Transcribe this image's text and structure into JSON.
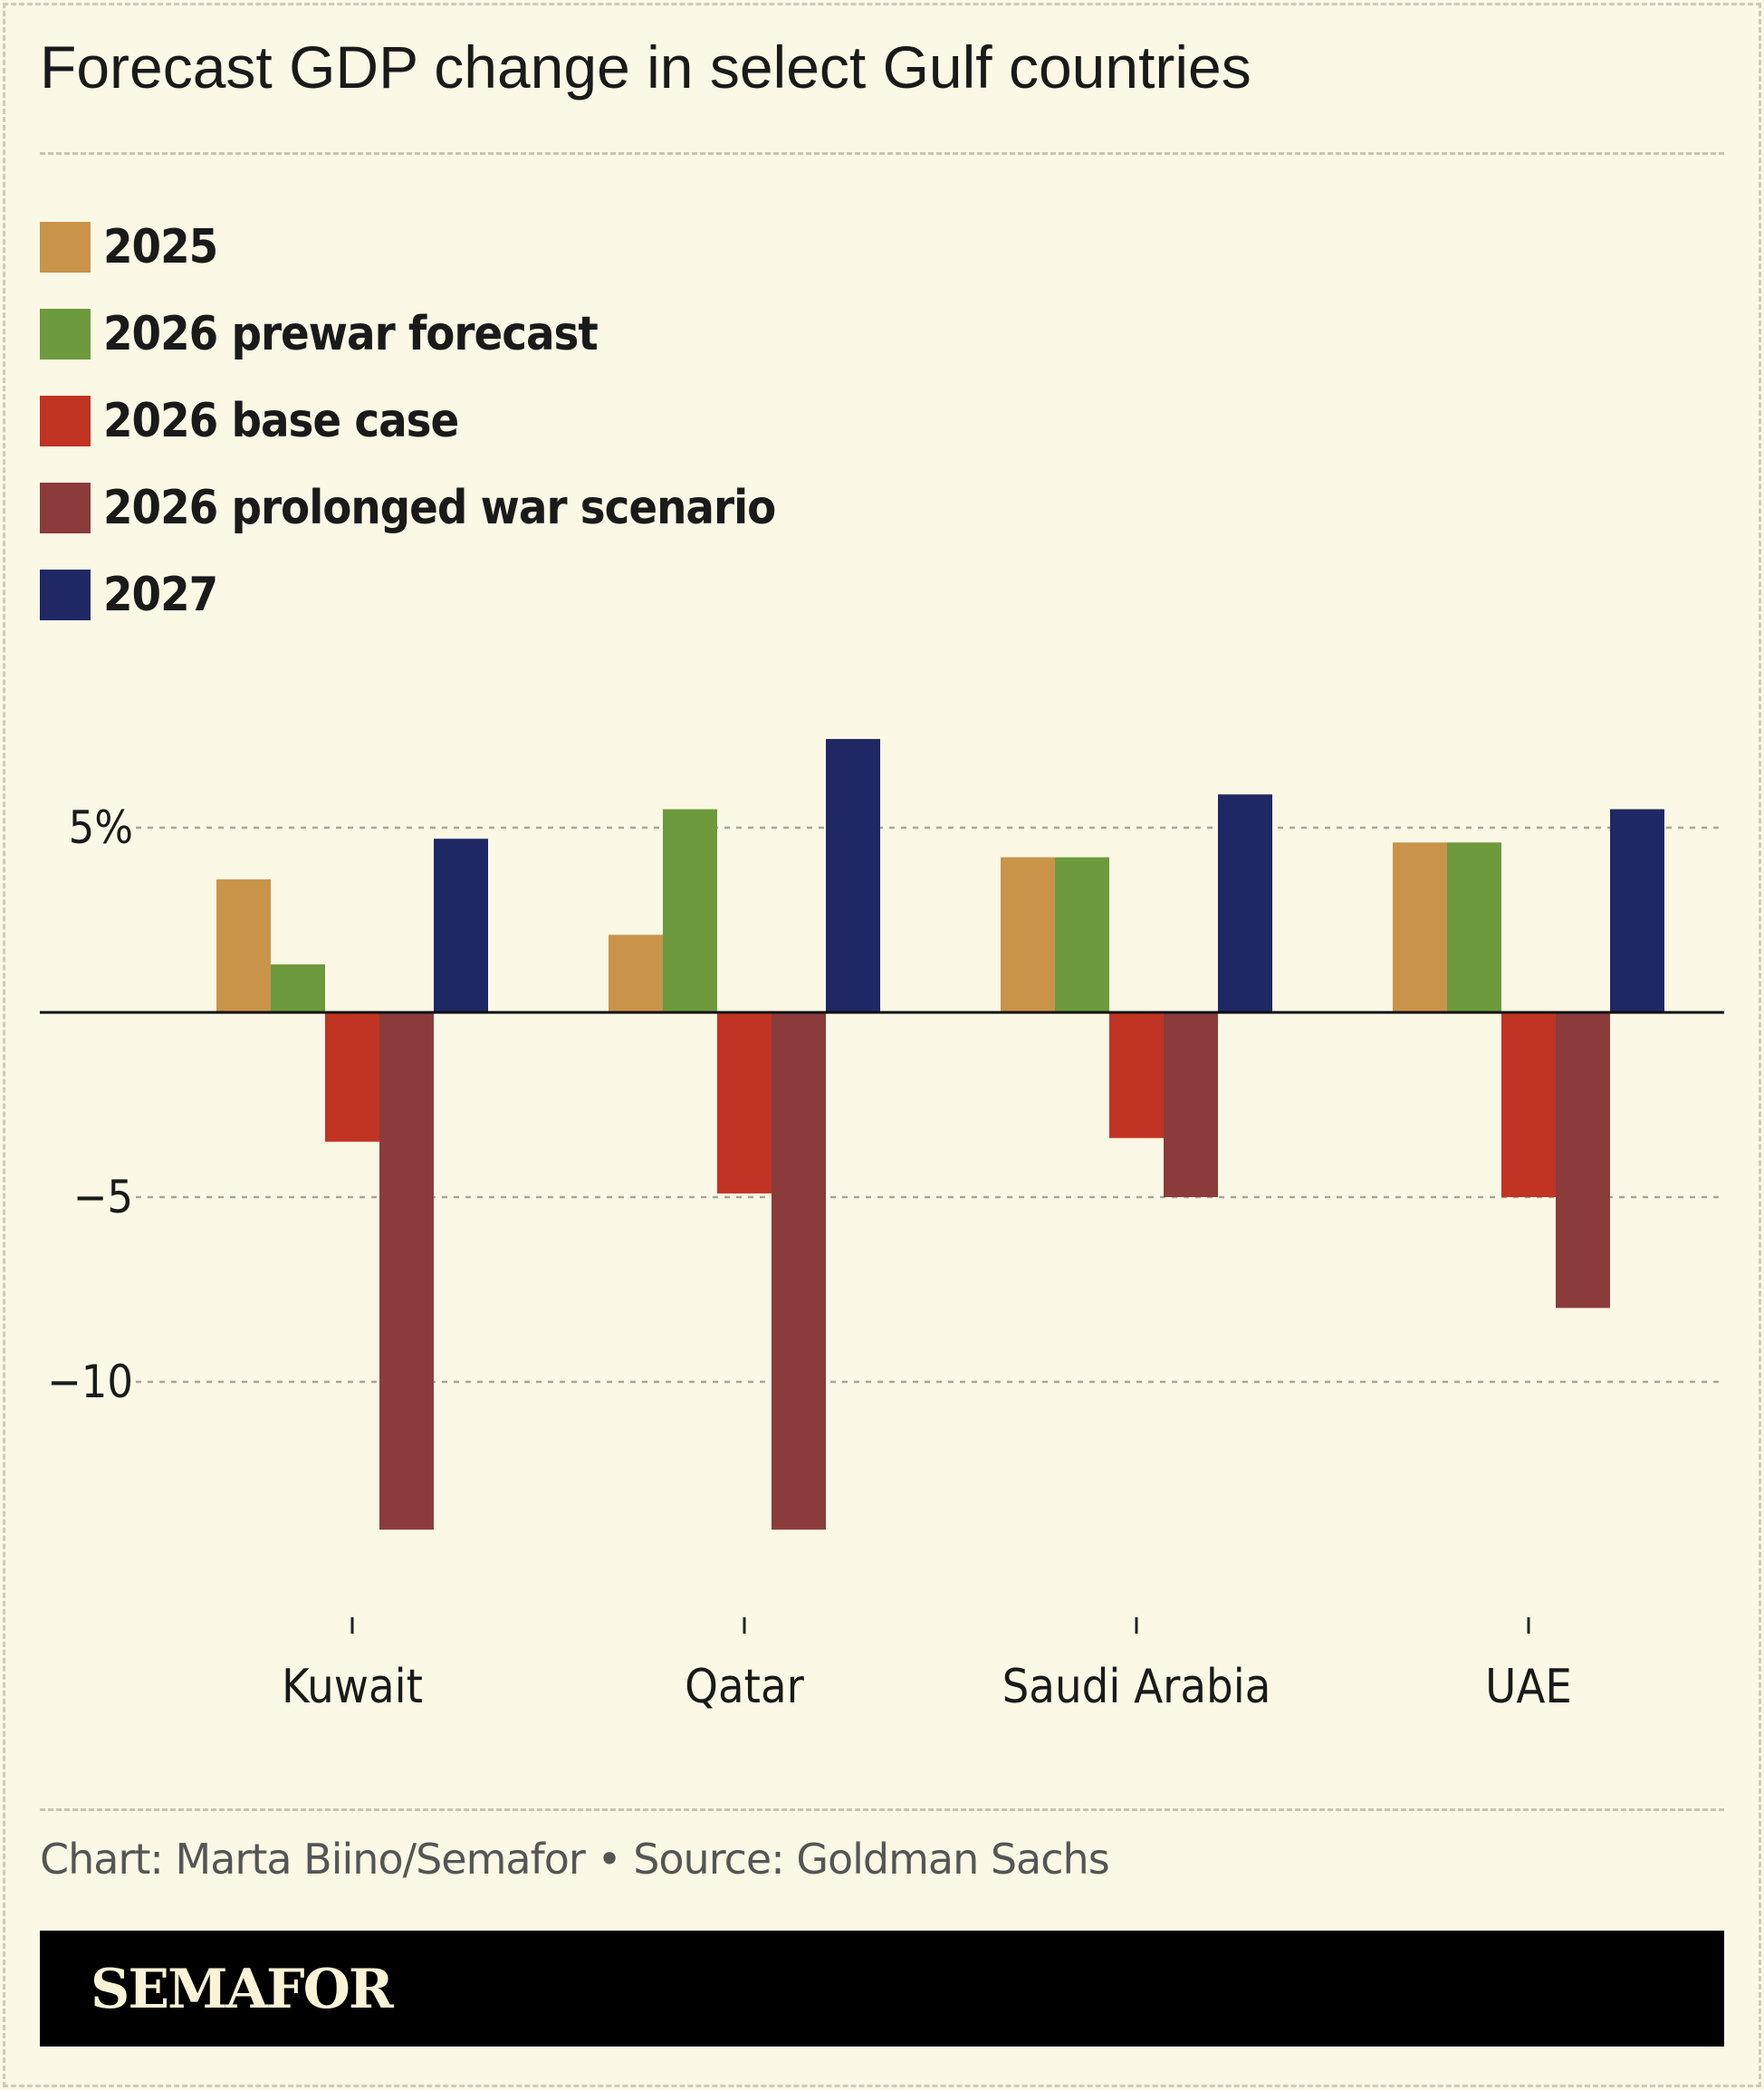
{
  "title": "Forecast GDP change in select Gulf countries",
  "credit": "Chart: Marta Biino/Semafor • Source: Goldman Sachs",
  "logo": "SEMAFOR",
  "chart_data": {
    "type": "bar",
    "title": "Forecast GDP change in select Gulf countries",
    "xlabel": "",
    "ylabel": "",
    "categories": [
      "Kuwait",
      "Qatar",
      "Saudi Arabia",
      "UAE"
    ],
    "series": [
      {
        "name": "2025",
        "color": "#c9934a",
        "values": [
          3.6,
          2.1,
          4.2,
          4.6
        ]
      },
      {
        "name": "2026 prewar forecast",
        "color": "#6d9a3c",
        "values": [
          1.3,
          5.5,
          4.2,
          4.6
        ]
      },
      {
        "name": "2026 base case",
        "color": "#c13322",
        "values": [
          -3.5,
          -4.9,
          -3.4,
          -5.0
        ]
      },
      {
        "name": "2026 prolonged war scenario",
        "color": "#8b3b3b",
        "values": [
          -14.0,
          -14.0,
          -5.0,
          -8.0
        ]
      },
      {
        "name": "2027",
        "color": "#1f2865",
        "values": [
          4.7,
          7.4,
          5.9,
          5.5
        ]
      }
    ],
    "yticks": [
      5,
      -5,
      -10
    ],
    "ytick_labels": [
      "5%",
      "−5",
      "−10"
    ],
    "ylim": [
      -16,
      8.5
    ],
    "grid": true,
    "legend": "top-left"
  }
}
